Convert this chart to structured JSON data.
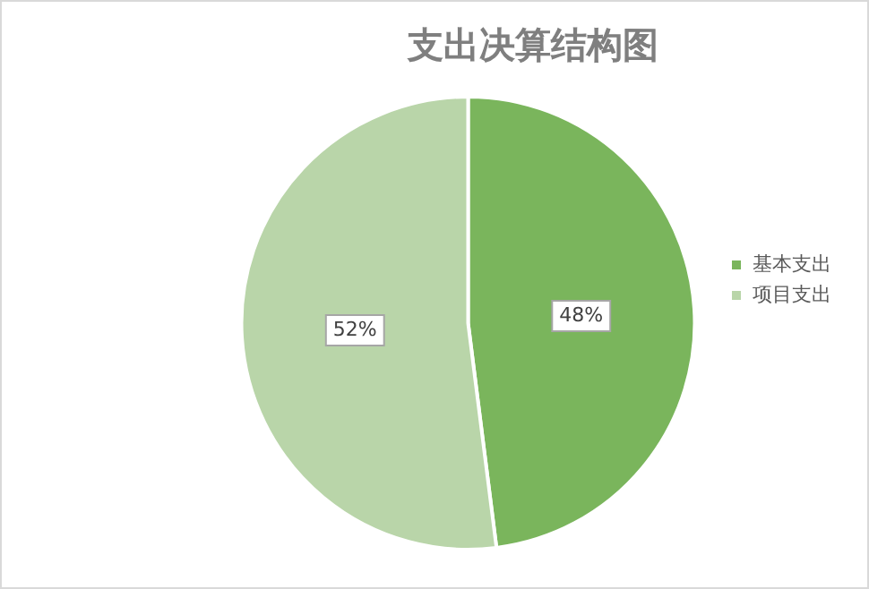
{
  "chart_data": {
    "type": "pie",
    "title": "支出决算结构图",
    "categories": [
      "基本支出",
      "项目支出"
    ],
    "values": [
      48,
      52
    ],
    "colors": [
      "#7ab55c",
      "#b9d5a9"
    ],
    "value_labels": [
      "48%",
      "52%"
    ],
    "legend": "right"
  }
}
